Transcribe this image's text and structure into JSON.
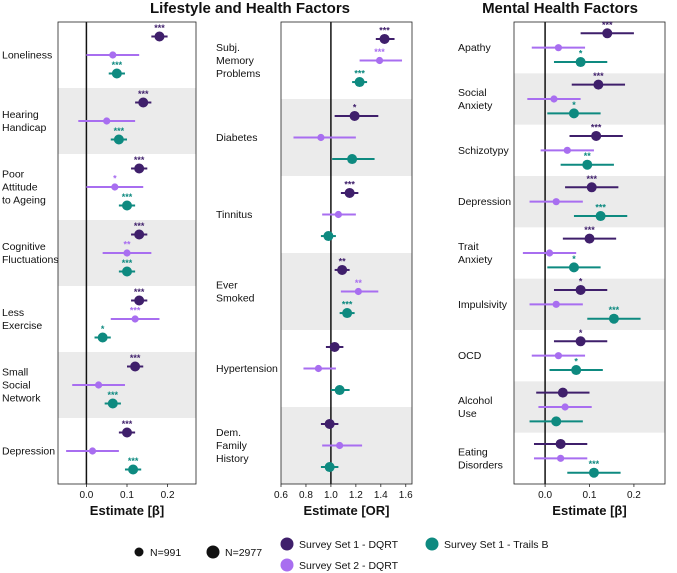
{
  "colors": {
    "ss1_dqrt": "#3f1f6b",
    "ss2_dqrt": "#a86ef0",
    "ss1_trails": "#0e8a80",
    "band": "#ebebeb"
  },
  "legend": {
    "size_small": "N=991",
    "size_large": "N=2977",
    "ss1_dqrt": "Survey Set 1 - DQRT",
    "ss2_dqrt": "Survey Set 2 - DQRT",
    "ss1_trails": "Survey Set 1 - Trails B"
  },
  "chart_data": [
    {
      "type": "forest",
      "title": "Lifestyle and Health Factors",
      "xlabel": "Estimate [β]",
      "xlim": [
        -0.07,
        0.27
      ],
      "ref": 0,
      "ticks": [
        0,
        0.1,
        0.2
      ],
      "tick_labels": [
        "0.0",
        "0.1",
        "0.2"
      ],
      "categories": [
        {
          "label": "Loneliness",
          "rows": [
            {
              "series": "ss1_dqrt",
              "est": 0.18,
              "lo": 0.16,
              "hi": 0.2,
              "stars": "***"
            },
            {
              "series": "ss2_dqrt",
              "est": 0.065,
              "lo": 0.0,
              "hi": 0.13,
              "stars": ""
            },
            {
              "series": "ss1_trails",
              "est": 0.075,
              "lo": 0.055,
              "hi": 0.095,
              "stars": "***"
            }
          ]
        },
        {
          "label": "Hearing Handicap",
          "rows": [
            {
              "series": "ss1_dqrt",
              "est": 0.14,
              "lo": 0.12,
              "hi": 0.16,
              "stars": "***"
            },
            {
              "series": "ss2_dqrt",
              "est": 0.05,
              "lo": -0.02,
              "hi": 0.12,
              "stars": ""
            },
            {
              "series": "ss1_trails",
              "est": 0.08,
              "lo": 0.06,
              "hi": 0.1,
              "stars": "***"
            }
          ]
        },
        {
          "label": "Poor Attitude to Ageing",
          "rows": [
            {
              "series": "ss1_dqrt",
              "est": 0.13,
              "lo": 0.11,
              "hi": 0.15,
              "stars": "***"
            },
            {
              "series": "ss2_dqrt",
              "est": 0.07,
              "lo": 0.0,
              "hi": 0.14,
              "stars": "*"
            },
            {
              "series": "ss1_trails",
              "est": 0.1,
              "lo": 0.08,
              "hi": 0.12,
              "stars": "***"
            }
          ]
        },
        {
          "label": "Cognitive Fluctuations",
          "rows": [
            {
              "series": "ss1_dqrt",
              "est": 0.13,
              "lo": 0.11,
              "hi": 0.15,
              "stars": "***"
            },
            {
              "series": "ss2_dqrt",
              "est": 0.1,
              "lo": 0.04,
              "hi": 0.16,
              "stars": "**"
            },
            {
              "series": "ss1_trails",
              "est": 0.1,
              "lo": 0.08,
              "hi": 0.12,
              "stars": "***"
            }
          ]
        },
        {
          "label": "Less Exercise",
          "rows": [
            {
              "series": "ss1_dqrt",
              "est": 0.13,
              "lo": 0.11,
              "hi": 0.15,
              "stars": "***"
            },
            {
              "series": "ss2_dqrt",
              "est": 0.12,
              "lo": 0.06,
              "hi": 0.18,
              "stars": "***"
            },
            {
              "series": "ss1_trails",
              "est": 0.04,
              "lo": 0.02,
              "hi": 0.06,
              "stars": "*"
            }
          ]
        },
        {
          "label": "Small Social Network",
          "rows": [
            {
              "series": "ss1_dqrt",
              "est": 0.12,
              "lo": 0.1,
              "hi": 0.14,
              "stars": "***"
            },
            {
              "series": "ss2_dqrt",
              "est": 0.03,
              "lo": -0.035,
              "hi": 0.095,
              "stars": ""
            },
            {
              "series": "ss1_trails",
              "est": 0.065,
              "lo": 0.045,
              "hi": 0.085,
              "stars": "***"
            }
          ]
        },
        {
          "label": "Depression",
          "rows": [
            {
              "series": "ss1_dqrt",
              "est": 0.1,
              "lo": 0.08,
              "hi": 0.12,
              "stars": "***"
            },
            {
              "series": "ss2_dqrt",
              "est": 0.015,
              "lo": -0.05,
              "hi": 0.08,
              "stars": ""
            },
            {
              "series": "ss1_trails",
              "est": 0.115,
              "lo": 0.095,
              "hi": 0.135,
              "stars": "***"
            }
          ]
        }
      ]
    },
    {
      "type": "forest",
      "title": "",
      "xlabel": "Estimate [OR]",
      "xlim": [
        0.6,
        1.65
      ],
      "ref": 1.0,
      "ticks": [
        0.6,
        0.8,
        1.0,
        1.2,
        1.4,
        1.6
      ],
      "tick_labels": [
        "0.6",
        "0.8",
        "1.0",
        "1.2",
        "1.4",
        "1.6"
      ],
      "categories": [
        {
          "label": "Subj. Memory Problems",
          "rows": [
            {
              "series": "ss1_dqrt",
              "est": 1.43,
              "lo": 1.36,
              "hi": 1.51,
              "stars": "***"
            },
            {
              "series": "ss2_dqrt",
              "est": 1.39,
              "lo": 1.23,
              "hi": 1.57,
              "stars": "***"
            },
            {
              "series": "ss1_trails",
              "est": 1.23,
              "lo": 1.17,
              "hi": 1.29,
              "stars": "***"
            }
          ]
        },
        {
          "label": "Diabetes",
          "rows": [
            {
              "series": "ss1_dqrt",
              "est": 1.19,
              "lo": 1.03,
              "hi": 1.38,
              "stars": "*"
            },
            {
              "series": "ss2_dqrt",
              "est": 0.92,
              "lo": 0.7,
              "hi": 1.2,
              "stars": ""
            },
            {
              "series": "ss1_trails",
              "est": 1.17,
              "lo": 1.01,
              "hi": 1.35,
              "stars": ""
            }
          ]
        },
        {
          "label": "Tinnitus",
          "rows": [
            {
              "series": "ss1_dqrt",
              "est": 1.15,
              "lo": 1.08,
              "hi": 1.22,
              "stars": "***"
            },
            {
              "series": "ss2_dqrt",
              "est": 1.06,
              "lo": 0.93,
              "hi": 1.2,
              "stars": ""
            },
            {
              "series": "ss1_trails",
              "est": 0.98,
              "lo": 0.92,
              "hi": 1.04,
              "stars": ""
            }
          ]
        },
        {
          "label": "Ever Smoked",
          "rows": [
            {
              "series": "ss1_dqrt",
              "est": 1.09,
              "lo": 1.03,
              "hi": 1.15,
              "stars": "**"
            },
            {
              "series": "ss2_dqrt",
              "est": 1.22,
              "lo": 1.08,
              "hi": 1.38,
              "stars": "**"
            },
            {
              "series": "ss1_trails",
              "est": 1.13,
              "lo": 1.07,
              "hi": 1.19,
              "stars": "***"
            }
          ]
        },
        {
          "label": "Hypertension",
          "rows": [
            {
              "series": "ss1_dqrt",
              "est": 1.03,
              "lo": 0.96,
              "hi": 1.1,
              "stars": ""
            },
            {
              "series": "ss2_dqrt",
              "est": 0.9,
              "lo": 0.78,
              "hi": 1.04,
              "stars": ""
            },
            {
              "series": "ss1_trails",
              "est": 1.07,
              "lo": 1.0,
              "hi": 1.15,
              "stars": ""
            }
          ]
        },
        {
          "label": "Dem. Family History",
          "rows": [
            {
              "series": "ss1_dqrt",
              "est": 0.99,
              "lo": 0.92,
              "hi": 1.06,
              "stars": ""
            },
            {
              "series": "ss2_dqrt",
              "est": 1.07,
              "lo": 0.93,
              "hi": 1.25,
              "stars": ""
            },
            {
              "series": "ss1_trails",
              "est": 0.99,
              "lo": 0.92,
              "hi": 1.06,
              "stars": ""
            }
          ]
        }
      ]
    },
    {
      "type": "forest",
      "title": "Mental Health Factors",
      "xlabel": "Estimate [β]",
      "xlim": [
        -0.07,
        0.27
      ],
      "ref": 0,
      "ticks": [
        0,
        0.1,
        0.2
      ],
      "tick_labels": [
        "0.0",
        "0.1",
        "0.2"
      ],
      "categories": [
        {
          "label": "Apathy",
          "rows": [
            {
              "series": "ss1_dqrt",
              "est": 0.14,
              "lo": 0.08,
              "hi": 0.2,
              "stars": "***"
            },
            {
              "series": "ss2_dqrt",
              "est": 0.03,
              "lo": -0.03,
              "hi": 0.09,
              "stars": ""
            },
            {
              "series": "ss1_trails",
              "est": 0.08,
              "lo": 0.02,
              "hi": 0.14,
              "stars": "*"
            }
          ]
        },
        {
          "label": "Social Anxiety",
          "rows": [
            {
              "series": "ss1_dqrt",
              "est": 0.12,
              "lo": 0.06,
              "hi": 0.18,
              "stars": "***"
            },
            {
              "series": "ss2_dqrt",
              "est": 0.02,
              "lo": -0.04,
              "hi": 0.08,
              "stars": ""
            },
            {
              "series": "ss1_trails",
              "est": 0.065,
              "lo": 0.005,
              "hi": 0.125,
              "stars": "*"
            }
          ]
        },
        {
          "label": "Schizotypy",
          "rows": [
            {
              "series": "ss1_dqrt",
              "est": 0.115,
              "lo": 0.055,
              "hi": 0.175,
              "stars": "***"
            },
            {
              "series": "ss2_dqrt",
              "est": 0.05,
              "lo": -0.01,
              "hi": 0.11,
              "stars": ""
            },
            {
              "series": "ss1_trails",
              "est": 0.095,
              "lo": 0.035,
              "hi": 0.155,
              "stars": "**"
            }
          ]
        },
        {
          "label": "Depression",
          "rows": [
            {
              "series": "ss1_dqrt",
              "est": 0.105,
              "lo": 0.045,
              "hi": 0.165,
              "stars": "***"
            },
            {
              "series": "ss2_dqrt",
              "est": 0.025,
              "lo": -0.035,
              "hi": 0.085,
              "stars": ""
            },
            {
              "series": "ss1_trails",
              "est": 0.125,
              "lo": 0.065,
              "hi": 0.185,
              "stars": "***"
            }
          ]
        },
        {
          "label": "Trait Anxiety",
          "rows": [
            {
              "series": "ss1_dqrt",
              "est": 0.1,
              "lo": 0.04,
              "hi": 0.16,
              "stars": "***"
            },
            {
              "series": "ss2_dqrt",
              "est": 0.01,
              "lo": -0.05,
              "hi": 0.07,
              "stars": ""
            },
            {
              "series": "ss1_trails",
              "est": 0.065,
              "lo": 0.005,
              "hi": 0.125,
              "stars": "*"
            }
          ]
        },
        {
          "label": "Impulsivity",
          "rows": [
            {
              "series": "ss1_dqrt",
              "est": 0.08,
              "lo": 0.02,
              "hi": 0.14,
              "stars": "*"
            },
            {
              "series": "ss2_dqrt",
              "est": 0.025,
              "lo": -0.035,
              "hi": 0.085,
              "stars": ""
            },
            {
              "series": "ss1_trails",
              "est": 0.155,
              "lo": 0.095,
              "hi": 0.215,
              "stars": "***"
            }
          ]
        },
        {
          "label": "OCD",
          "rows": [
            {
              "series": "ss1_dqrt",
              "est": 0.08,
              "lo": 0.02,
              "hi": 0.14,
              "stars": "*"
            },
            {
              "series": "ss2_dqrt",
              "est": 0.03,
              "lo": -0.03,
              "hi": 0.09,
              "stars": ""
            },
            {
              "series": "ss1_trails",
              "est": 0.07,
              "lo": 0.01,
              "hi": 0.13,
              "stars": "*"
            }
          ]
        },
        {
          "label": "Alcohol Use",
          "rows": [
            {
              "series": "ss1_dqrt",
              "est": 0.04,
              "lo": -0.02,
              "hi": 0.1,
              "stars": ""
            },
            {
              "series": "ss2_dqrt",
              "est": 0.045,
              "lo": -0.015,
              "hi": 0.105,
              "stars": ""
            },
            {
              "series": "ss1_trails",
              "est": 0.025,
              "lo": -0.035,
              "hi": 0.085,
              "stars": ""
            }
          ]
        },
        {
          "label": "Eating Disorders",
          "rows": [
            {
              "series": "ss1_dqrt",
              "est": 0.035,
              "lo": -0.025,
              "hi": 0.095,
              "stars": ""
            },
            {
              "series": "ss2_dqrt",
              "est": 0.035,
              "lo": -0.025,
              "hi": 0.095,
              "stars": ""
            },
            {
              "series": "ss1_trails",
              "est": 0.11,
              "lo": 0.05,
              "hi": 0.17,
              "stars": "***"
            }
          ]
        }
      ]
    }
  ]
}
